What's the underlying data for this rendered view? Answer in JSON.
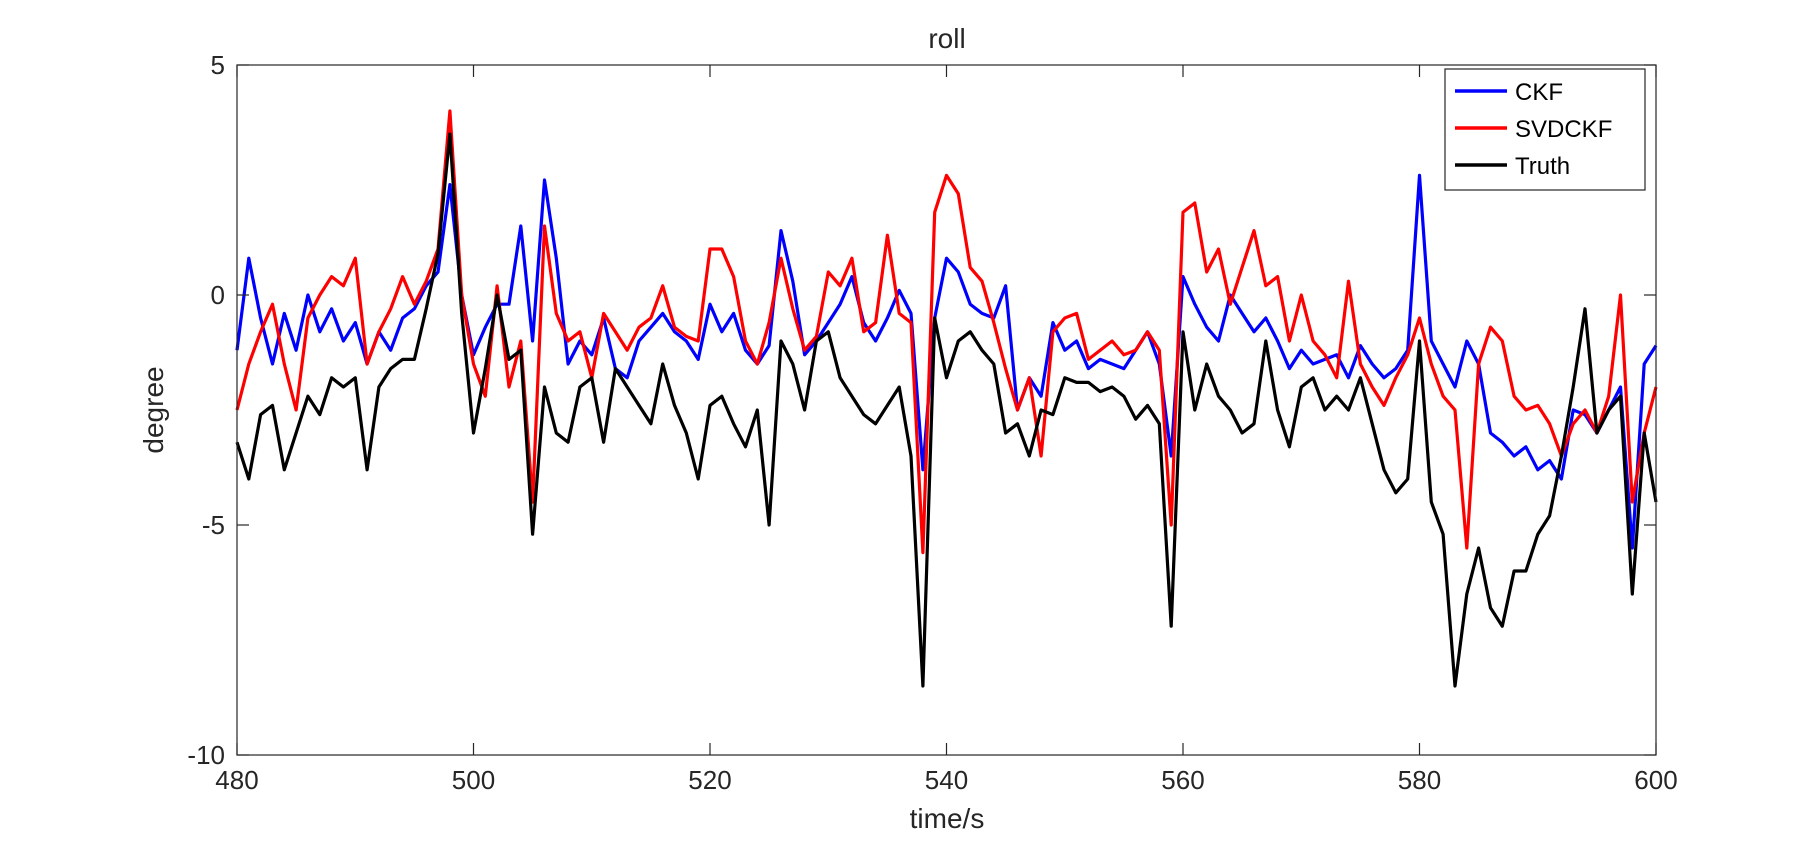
{
  "chart_data": {
    "type": "line",
    "title": "roll",
    "xlabel": "time/s",
    "ylabel": "degree",
    "xlim": [
      480,
      600
    ],
    "ylim": [
      -10,
      5
    ],
    "xticks": [
      480,
      500,
      520,
      540,
      560,
      580,
      600
    ],
    "yticks": [
      -10,
      -5,
      0,
      5
    ],
    "grid": false,
    "legend_position": "top-right",
    "series": [
      {
        "name": "CKF",
        "color": "#0000ff",
        "x": [
          480,
          481,
          482,
          483,
          484,
          485,
          486,
          487,
          488,
          489,
          490,
          491,
          492,
          493,
          494,
          495,
          496,
          497,
          498,
          499,
          500,
          501,
          502,
          503,
          504,
          505,
          506,
          507,
          508,
          509,
          510,
          511,
          512,
          513,
          514,
          515,
          516,
          517,
          518,
          519,
          520,
          521,
          522,
          523,
          524,
          525,
          526,
          527,
          528,
          529,
          530,
          531,
          532,
          533,
          534,
          535,
          536,
          537,
          538,
          539,
          540,
          541,
          542,
          543,
          544,
          545,
          546,
          547,
          548,
          549,
          550,
          551,
          552,
          553,
          554,
          555,
          556,
          557,
          558,
          559,
          560,
          561,
          562,
          563,
          564,
          565,
          566,
          567,
          568,
          569,
          570,
          571,
          572,
          573,
          574,
          575,
          576,
          577,
          578,
          579,
          580,
          581,
          582,
          583,
          584,
          585,
          586,
          587,
          588,
          589,
          590,
          591,
          592,
          593,
          594,
          595,
          596,
          597,
          598,
          599,
          600
        ],
        "y": [
          -1.2,
          0.8,
          -0.5,
          -1.5,
          -0.4,
          -1.2,
          0.0,
          -0.8,
          -0.3,
          -1.0,
          -0.6,
          -1.5,
          -0.8,
          -1.2,
          -0.5,
          -0.3,
          0.2,
          0.5,
          2.4,
          0.0,
          -1.3,
          -0.7,
          -0.2,
          -0.2,
          1.5,
          -1.0,
          2.5,
          0.8,
          -1.5,
          -1.0,
          -1.3,
          -0.5,
          -1.6,
          -1.8,
          -1.0,
          -0.7,
          -0.4,
          -0.8,
          -1.0,
          -1.4,
          -0.2,
          -0.8,
          -0.4,
          -1.2,
          -1.5,
          -1.1,
          1.4,
          0.3,
          -1.3,
          -1.0,
          -0.6,
          -0.2,
          0.4,
          -0.6,
          -1.0,
          -0.5,
          0.1,
          -0.4,
          -3.8,
          -0.5,
          0.8,
          0.5,
          -0.2,
          -0.4,
          -0.5,
          0.2,
          -2.5,
          -1.8,
          -2.2,
          -0.6,
          -1.2,
          -1.0,
          -1.6,
          -1.4,
          -1.5,
          -1.6,
          -1.2,
          -0.8,
          -1.5,
          -3.5,
          0.4,
          -0.2,
          -0.7,
          -1.0,
          0.0,
          -0.4,
          -0.8,
          -0.5,
          -1.0,
          -1.6,
          -1.2,
          -1.5,
          -1.4,
          -1.3,
          -1.8,
          -1.1,
          -1.5,
          -1.8,
          -1.6,
          -1.2,
          2.6,
          -1.0,
          -1.5,
          -2.0,
          -1.0,
          -1.5,
          -3.0,
          -3.2,
          -3.5,
          -3.3,
          -3.8,
          -3.6,
          -4.0,
          -2.5,
          -2.6,
          -3.0,
          -2.5,
          -2.0,
          -5.5,
          -1.5,
          -1.1
        ]
      },
      {
        "name": "SVDCKF",
        "color": "#ff0000",
        "x": [
          480,
          481,
          482,
          483,
          484,
          485,
          486,
          487,
          488,
          489,
          490,
          491,
          492,
          493,
          494,
          495,
          496,
          497,
          498,
          499,
          500,
          501,
          502,
          503,
          504,
          505,
          506,
          507,
          508,
          509,
          510,
          511,
          512,
          513,
          514,
          515,
          516,
          517,
          518,
          519,
          520,
          521,
          522,
          523,
          524,
          525,
          526,
          527,
          528,
          529,
          530,
          531,
          532,
          533,
          534,
          535,
          536,
          537,
          538,
          539,
          540,
          541,
          542,
          543,
          544,
          545,
          546,
          547,
          548,
          549,
          550,
          551,
          552,
          553,
          554,
          555,
          556,
          557,
          558,
          559,
          560,
          561,
          562,
          563,
          564,
          565,
          566,
          567,
          568,
          569,
          570,
          571,
          572,
          573,
          574,
          575,
          576,
          577,
          578,
          579,
          580,
          581,
          582,
          583,
          584,
          585,
          586,
          587,
          588,
          589,
          590,
          591,
          592,
          593,
          594,
          595,
          596,
          597,
          598,
          599,
          600
        ],
        "y": [
          -2.5,
          -1.5,
          -0.8,
          -0.2,
          -1.5,
          -2.5,
          -0.5,
          0.0,
          0.4,
          0.2,
          0.8,
          -1.5,
          -0.8,
          -0.3,
          0.4,
          -0.2,
          0.3,
          1.0,
          4.0,
          0.0,
          -1.5,
          -2.2,
          0.2,
          -2.0,
          -1.0,
          -4.5,
          1.5,
          -0.4,
          -1.0,
          -0.8,
          -1.8,
          -0.4,
          -0.8,
          -1.2,
          -0.7,
          -0.5,
          0.2,
          -0.7,
          -0.9,
          -1.0,
          1.0,
          1.0,
          0.4,
          -1.0,
          -1.5,
          -0.6,
          0.8,
          -0.3,
          -1.2,
          -0.9,
          0.5,
          0.2,
          0.8,
          -0.8,
          -0.6,
          1.3,
          -0.4,
          -0.6,
          -5.6,
          1.8,
          2.6,
          2.2,
          0.6,
          0.3,
          -0.6,
          -1.6,
          -2.5,
          -1.8,
          -3.5,
          -0.8,
          -0.5,
          -0.4,
          -1.4,
          -1.2,
          -1.0,
          -1.3,
          -1.2,
          -0.8,
          -1.2,
          -5.0,
          1.8,
          2.0,
          0.5,
          1.0,
          -0.2,
          0.6,
          1.4,
          0.2,
          0.4,
          -1.0,
          0.0,
          -1.0,
          -1.3,
          -1.8,
          0.3,
          -1.5,
          -2.0,
          -2.4,
          -1.8,
          -1.3,
          -0.5,
          -1.5,
          -2.2,
          -2.5,
          -5.5,
          -1.5,
          -0.7,
          -1.0,
          -2.2,
          -2.5,
          -2.4,
          -2.8,
          -3.5,
          -2.8,
          -2.5,
          -3.0,
          -2.2,
          0.0,
          -4.5,
          -3.0,
          -2.0
        ]
      },
      {
        "name": "Truth",
        "color": "#000000",
        "x": [
          480,
          481,
          482,
          483,
          484,
          485,
          486,
          487,
          488,
          489,
          490,
          491,
          492,
          493,
          494,
          495,
          496,
          497,
          498,
          499,
          500,
          501,
          502,
          503,
          504,
          505,
          506,
          507,
          508,
          509,
          510,
          511,
          512,
          513,
          514,
          515,
          516,
          517,
          518,
          519,
          520,
          521,
          522,
          523,
          524,
          525,
          526,
          527,
          528,
          529,
          530,
          531,
          532,
          533,
          534,
          535,
          536,
          537,
          538,
          539,
          540,
          541,
          542,
          543,
          544,
          545,
          546,
          547,
          548,
          549,
          550,
          551,
          552,
          553,
          554,
          555,
          556,
          557,
          558,
          559,
          560,
          561,
          562,
          563,
          564,
          565,
          566,
          567,
          568,
          569,
          570,
          571,
          572,
          573,
          574,
          575,
          576,
          577,
          578,
          579,
          580,
          581,
          582,
          583,
          584,
          585,
          586,
          587,
          588,
          589,
          590,
          591,
          592,
          593,
          594,
          595,
          596,
          597,
          598,
          599,
          600
        ],
        "y": [
          -3.2,
          -4.0,
          -2.6,
          -2.4,
          -3.8,
          -3.0,
          -2.2,
          -2.6,
          -1.8,
          -2.0,
          -1.8,
          -3.8,
          -2.0,
          -1.6,
          -1.4,
          -1.4,
          -0.3,
          0.9,
          3.5,
          -0.4,
          -3.0,
          -1.6,
          0.0,
          -1.4,
          -1.2,
          -5.2,
          -2.0,
          -3.0,
          -3.2,
          -2.0,
          -1.8,
          -3.2,
          -1.6,
          -2.0,
          -2.4,
          -2.8,
          -1.5,
          -2.4,
          -3.0,
          -4.0,
          -2.4,
          -2.2,
          -2.8,
          -3.3,
          -2.5,
          -5.0,
          -1.0,
          -1.5,
          -2.5,
          -1.0,
          -0.8,
          -1.8,
          -2.2,
          -2.6,
          -2.8,
          -2.4,
          -2.0,
          -3.5,
          -8.5,
          -0.5,
          -1.8,
          -1.0,
          -0.8,
          -1.2,
          -1.5,
          -3.0,
          -2.8,
          -3.5,
          -2.5,
          -2.6,
          -1.8,
          -1.9,
          -1.9,
          -2.1,
          -2.0,
          -2.2,
          -2.7,
          -2.4,
          -2.8,
          -7.2,
          -0.8,
          -2.5,
          -1.5,
          -2.2,
          -2.5,
          -3.0,
          -2.8,
          -1.0,
          -2.5,
          -3.3,
          -2.0,
          -1.8,
          -2.5,
          -2.2,
          -2.5,
          -1.8,
          -2.8,
          -3.8,
          -4.3,
          -4.0,
          -1.0,
          -4.5,
          -5.2,
          -8.5,
          -6.5,
          -5.5,
          -6.8,
          -7.2,
          -6.0,
          -6.0,
          -5.2,
          -4.8,
          -3.5,
          -2.0,
          -0.3,
          -3.0,
          -2.5,
          -2.2,
          -6.5,
          -3.0,
          -4.5
        ]
      }
    ]
  }
}
